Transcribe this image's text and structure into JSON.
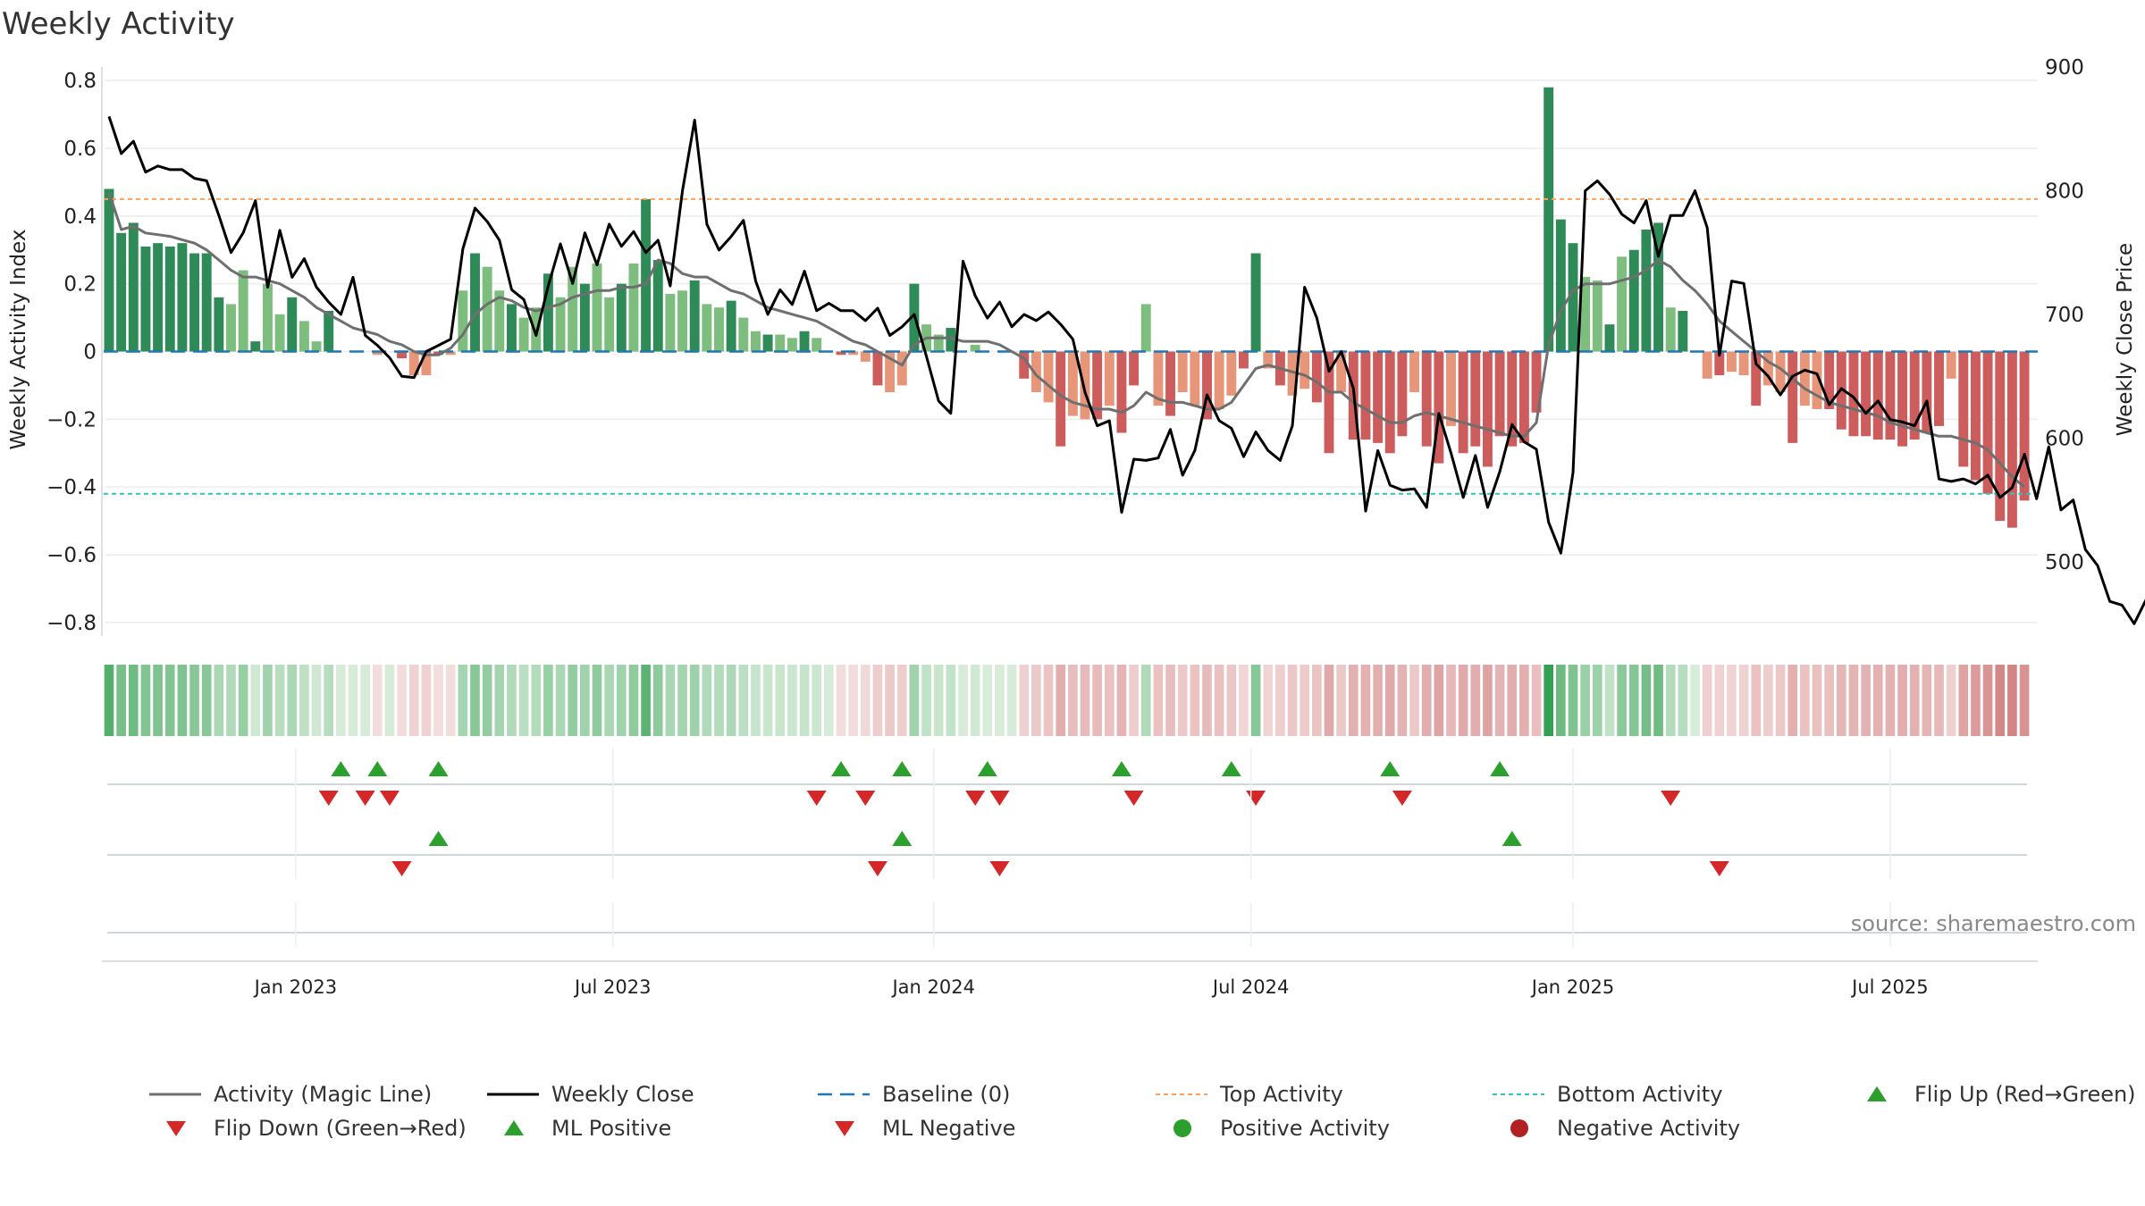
{
  "chart_data": {
    "type": "bar",
    "title": "Weekly Activity",
    "ylabel": "Weekly Activity Index",
    "y2label": "Weekly Close Price",
    "ylim": [
      -0.84,
      0.84
    ],
    "y2lim": [
      440,
      900
    ],
    "yticks": [
      0.8,
      0.6,
      0.4,
      0.2,
      0,
      -0.2,
      -0.4,
      -0.6,
      -0.8
    ],
    "ytick_labels": [
      "0.8",
      "0.6",
      "0.4",
      "0.2",
      "0",
      "−0.2",
      "−0.4",
      "−0.6",
      "−0.8"
    ],
    "y2ticks": [
      900,
      800,
      700,
      600,
      500
    ],
    "y2tick_labels": [
      "900",
      "800",
      "700",
      "600",
      "500"
    ],
    "xticks": [
      15.3,
      41.3,
      67.6,
      93.6,
      120,
      146
    ],
    "xtick_labels": [
      "Jan 2023",
      "Jul 2023",
      "Jan 2024",
      "Jul 2024",
      "Jan 2025",
      "Jul 2025"
    ],
    "n_weeks": 158,
    "baseline": 0,
    "top_activity": 0.45,
    "bottom_activity": -0.42,
    "activity": [
      0.48,
      0.35,
      0.38,
      0.31,
      0.32,
      0.31,
      0.32,
      0.29,
      0.29,
      0.16,
      0.14,
      0.24,
      0.03,
      0.2,
      0.11,
      0.16,
      0.09,
      0.03,
      0.12,
      0.0,
      0.0,
      0.0,
      -0.01,
      0.0,
      -0.02,
      -0.07,
      -0.07,
      -0.01,
      -0.01,
      0.18,
      0.29,
      0.25,
      0.18,
      0.14,
      0.1,
      0.13,
      0.23,
      0.16,
      0.25,
      0.2,
      0.26,
      0.16,
      0.2,
      0.26,
      0.45,
      0.27,
      0.17,
      0.18,
      0.21,
      0.14,
      0.13,
      0.15,
      0.1,
      0.06,
      0.05,
      0.05,
      0.04,
      0.06,
      0.04,
      0.0,
      -0.01,
      -0.01,
      -0.03,
      -0.1,
      -0.12,
      -0.1,
      0.2,
      0.08,
      0.05,
      0.07,
      0.0,
      0.02,
      0.0,
      0.0,
      0.0,
      -0.08,
      -0.12,
      -0.15,
      -0.28,
      -0.19,
      -0.2,
      -0.2,
      -0.16,
      -0.24,
      -0.1,
      0.14,
      -0.16,
      -0.19,
      -0.12,
      -0.16,
      -0.2,
      -0.17,
      -0.13,
      -0.05,
      0.29,
      -0.05,
      -0.1,
      -0.13,
      -0.11,
      -0.15,
      -0.3,
      -0.12,
      -0.26,
      -0.26,
      -0.27,
      -0.3,
      -0.25,
      -0.12,
      -0.28,
      -0.33,
      -0.22,
      -0.3,
      -0.28,
      -0.34,
      -0.25,
      -0.28,
      -0.27,
      -0.18,
      0.78,
      0.39,
      0.32,
      0.22,
      0.21,
      0.08,
      0.28,
      0.3,
      0.36,
      0.38,
      0.13,
      0.12,
      0.0,
      -0.08,
      -0.07,
      -0.06,
      -0.07,
      -0.16,
      -0.1,
      -0.12,
      -0.27,
      -0.16,
      -0.17,
      -0.17,
      -0.23,
      -0.25,
      -0.25,
      -0.26,
      -0.26,
      -0.28,
      -0.26,
      -0.24,
      -0.22,
      -0.08,
      -0.34,
      -0.38,
      -0.42,
      -0.5,
      -0.52,
      -0.44
    ],
    "magic_line": [
      0.47,
      0.36,
      0.37,
      0.35,
      0.345,
      0.34,
      0.33,
      0.32,
      0.3,
      0.27,
      0.24,
      0.22,
      0.22,
      0.21,
      0.2,
      0.18,
      0.16,
      0.13,
      0.11,
      0.09,
      0.07,
      0.06,
      0.05,
      0.03,
      0.02,
      0.0,
      -0.01,
      -0.01,
      0.01,
      0.05,
      0.11,
      0.14,
      0.16,
      0.15,
      0.13,
      0.12,
      0.13,
      0.14,
      0.16,
      0.17,
      0.18,
      0.18,
      0.19,
      0.19,
      0.2,
      0.27,
      0.26,
      0.23,
      0.22,
      0.22,
      0.2,
      0.18,
      0.17,
      0.15,
      0.13,
      0.12,
      0.11,
      0.1,
      0.09,
      0.07,
      0.05,
      0.03,
      0.02,
      0.0,
      -0.02,
      -0.04,
      0.02,
      0.04,
      0.04,
      0.04,
      0.03,
      0.03,
      0.03,
      0.02,
      0.0,
      -0.02,
      -0.07,
      -0.1,
      -0.13,
      -0.15,
      -0.16,
      -0.17,
      -0.17,
      -0.18,
      -0.16,
      -0.12,
      -0.14,
      -0.15,
      -0.15,
      -0.16,
      -0.17,
      -0.17,
      -0.15,
      -0.1,
      -0.05,
      -0.04,
      -0.05,
      -0.06,
      -0.07,
      -0.09,
      -0.12,
      -0.12,
      -0.15,
      -0.17,
      -0.19,
      -0.21,
      -0.21,
      -0.19,
      -0.18,
      -0.19,
      -0.2,
      -0.21,
      -0.22,
      -0.23,
      -0.24,
      -0.25,
      -0.25,
      -0.21,
      0.02,
      0.12,
      0.18,
      0.2,
      0.2,
      0.2,
      0.21,
      0.22,
      0.24,
      0.27,
      0.25,
      0.21,
      0.18,
      0.14,
      0.09,
      0.06,
      0.03,
      0.0,
      -0.03,
      -0.05,
      -0.08,
      -0.11,
      -0.13,
      -0.15,
      -0.16,
      -0.17,
      -0.18,
      -0.19,
      -0.21,
      -0.22,
      -0.23,
      -0.24,
      -0.25,
      -0.25,
      -0.26,
      -0.27,
      -0.29,
      -0.33,
      -0.37,
      -0.4
    ],
    "close": [
      860,
      830,
      840,
      815,
      820,
      817,
      817,
      810,
      808,
      780,
      750,
      766,
      792,
      722,
      768,
      730,
      745,
      722,
      710,
      700,
      730,
      683,
      675,
      665,
      650,
      649,
      670,
      675,
      680,
      753,
      786,
      775,
      760,
      720,
      712,
      683,
      723,
      757,
      725,
      766,
      740,
      773,
      755,
      767,
      750,
      760,
      723,
      800,
      857,
      773,
      752,
      763,
      776,
      727,
      700,
      720,
      708,
      735,
      703,
      709,
      703,
      703,
      695,
      705,
      683,
      690,
      700,
      666,
      630,
      620,
      743,
      715,
      697,
      710,
      690,
      700,
      695,
      702,
      692,
      680,
      637,
      610,
      614,
      540,
      583,
      582,
      584,
      607,
      570,
      590,
      635,
      614,
      608,
      585,
      605,
      590,
      582,
      610,
      722,
      697,
      654,
      670,
      640,
      541,
      590,
      562,
      558,
      559,
      544,
      620,
      588,
      552,
      586,
      544,
      573,
      611,
      597,
      591,
      532,
      507,
      572,
      800,
      808,
      797,
      781,
      774,
      792,
      747,
      780,
      780,
      800,
      770,
      667,
      727,
      725,
      660,
      650,
      635,
      650,
      655,
      652,
      627,
      640,
      633,
      620,
      630,
      615,
      613,
      610,
      630,
      567,
      565,
      567,
      563,
      570,
      552,
      560,
      587,
      551,
      593,
      542,
      550,
      510,
      497,
      468,
      465,
      450,
      470
    ],
    "activity_colors": {
      "strong_positive": "#2e8b57",
      "weak_positive": "#7dbd7d",
      "strong_negative": "#cd5c5c",
      "weak_negative": "#e8967a"
    },
    "series_colors": {
      "magic_line": "#6f6f6f",
      "close": "#000000",
      "baseline": "#1f77b4",
      "top": "#ff9f5a",
      "bottom": "#2ec4c4",
      "flip_up": "#2ca02c",
      "flip_down": "#d62728",
      "positive": "#2ca02c",
      "negative": "#b22222"
    },
    "flip_up_weeks": [
      19,
      22,
      27,
      60,
      65,
      72,
      83,
      92,
      105,
      114
    ],
    "flip_down_weeks": [
      18,
      21,
      23,
      58,
      62,
      71,
      73,
      84,
      94,
      106,
      128
    ],
    "ml_positive_weeks": [
      27,
      65,
      115
    ],
    "ml_negative_weeks": [
      24,
      63,
      73,
      132
    ],
    "source": "source: sharemaestro.com",
    "legend": [
      {
        "label": "Activity (Magic Line)",
        "kind": "line-solid-gray"
      },
      {
        "label": "Weekly Close",
        "kind": "line-solid-black"
      },
      {
        "label": "Baseline (0)",
        "kind": "line-dash-blue"
      },
      {
        "label": "Top Activity",
        "kind": "line-dot-orange"
      },
      {
        "label": "Bottom Activity",
        "kind": "line-dot-cyan"
      },
      {
        "label": "Flip Up (Red→Green)",
        "kind": "tri-up-green"
      },
      {
        "label": "Flip Down (Green→Red)",
        "kind": "tri-down-red"
      },
      {
        "label": "ML Positive",
        "kind": "tri-up-green"
      },
      {
        "label": "ML Negative",
        "kind": "tri-down-red"
      },
      {
        "label": "Positive Activity",
        "kind": "dot-green"
      },
      {
        "label": "Negative Activity",
        "kind": "dot-red"
      }
    ]
  }
}
